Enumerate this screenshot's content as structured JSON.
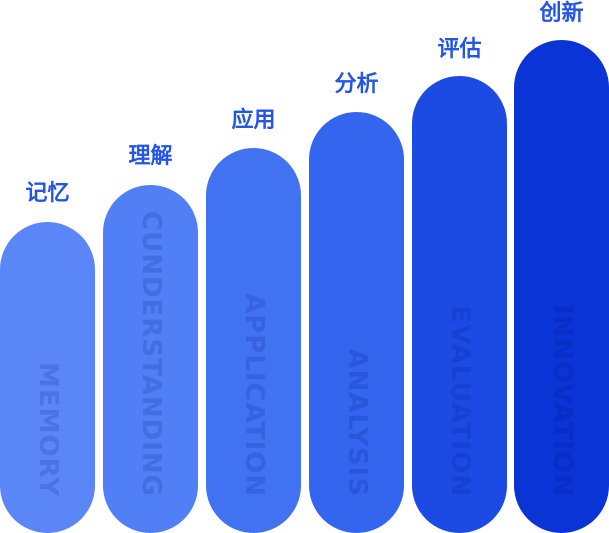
{
  "stages": [
    {
      "zh": "记忆",
      "en": "MEMORY",
      "color": "#5b86f8"
    },
    {
      "zh": "理解",
      "en": "CUNDERSTANDING",
      "color": "#507ff6"
    },
    {
      "zh": "应用",
      "en": "APPLICATION",
      "color": "#4172f2"
    },
    {
      "zh": "分析",
      "en": "ANALYSIS",
      "color": "#3365ee"
    },
    {
      "zh": "评估",
      "en": "EVALUATION",
      "color": "#1c4be4"
    },
    {
      "zh": "创新",
      "en": "INNOVATION",
      "color": "#0a34d6"
    }
  ]
}
